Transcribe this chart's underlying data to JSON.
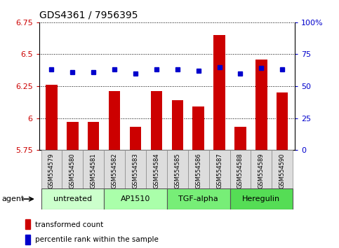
{
  "title": "GDS4361 / 7956395",
  "samples": [
    "GSM554579",
    "GSM554580",
    "GSM554581",
    "GSM554582",
    "GSM554583",
    "GSM554584",
    "GSM554585",
    "GSM554586",
    "GSM554587",
    "GSM554588",
    "GSM554589",
    "GSM554590"
  ],
  "red_values": [
    6.26,
    5.97,
    5.97,
    6.21,
    5.93,
    6.21,
    6.14,
    6.09,
    6.65,
    5.93,
    6.46,
    6.2
  ],
  "blue_values": [
    63,
    61,
    61,
    63,
    60,
    63,
    63,
    62,
    65,
    60,
    64,
    63
  ],
  "ylim_left": [
    5.75,
    6.75
  ],
  "ylim_right": [
    0,
    100
  ],
  "yticks_left": [
    5.75,
    6.0,
    6.25,
    6.5,
    6.75
  ],
  "yticks_right": [
    0,
    25,
    50,
    75,
    100
  ],
  "ytick_labels_left": [
    "5.75",
    "6",
    "6.25",
    "6.5",
    "6.75"
  ],
  "ytick_labels_right": [
    "0",
    "25",
    "50",
    "75",
    "100%"
  ],
  "groups": [
    {
      "label": "untreated",
      "start": 0,
      "end": 3,
      "color": "#ccffcc"
    },
    {
      "label": "AP1510",
      "start": 3,
      "end": 6,
      "color": "#aaffaa"
    },
    {
      "label": "TGF-alpha",
      "start": 6,
      "end": 9,
      "color": "#77ee77"
    },
    {
      "label": "Heregulin",
      "start": 9,
      "end": 12,
      "color": "#55dd55"
    }
  ],
  "bar_color": "#cc0000",
  "dot_color": "#0000cc",
  "bar_width": 0.55,
  "background_color": "#ffffff",
  "plot_bg_color": "#ffffff",
  "grid_color": "#000000",
  "tick_color_left": "#cc0000",
  "tick_color_right": "#0000cc",
  "legend_red": "transformed count",
  "legend_blue": "percentile rank within the sample",
  "agent_label": "agent",
  "ybase": 5.75
}
